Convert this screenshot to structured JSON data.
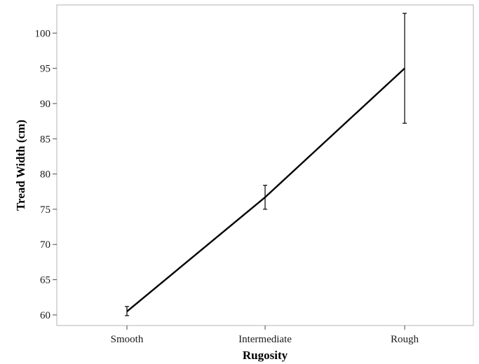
{
  "chart_data": {
    "type": "line",
    "title": "",
    "xlabel": "Rugosity",
    "ylabel": "Tread Width (cm)",
    "categories": [
      "Smooth",
      "Intermediate",
      "Rough"
    ],
    "series": [
      {
        "values": [
          60.5,
          76.7,
          95.0
        ],
        "error_low": [
          59.9,
          75.0,
          87.2
        ],
        "error_high": [
          61.2,
          78.4,
          102.8
        ],
        "color": "#000000"
      }
    ],
    "ylim": [
      58.5,
      104
    ],
    "yticks": [
      60,
      65,
      70,
      75,
      80,
      85,
      90,
      95,
      100
    ],
    "grid": false,
    "legend": "none"
  }
}
